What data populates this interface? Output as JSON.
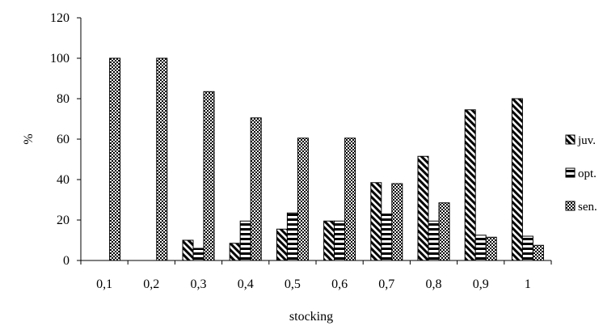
{
  "chart_data": {
    "type": "bar",
    "xlabel": "stocking",
    "ylabel": "%",
    "ylim": [
      0,
      120
    ],
    "yticks": [
      "0",
      "20",
      "40",
      "60",
      "80",
      "100",
      "120"
    ],
    "categories": [
      "0,1",
      "0,2",
      "0,3",
      "0,4",
      "0,5",
      "0,6",
      "0,7",
      "0,8",
      "0,9",
      "1"
    ],
    "grid": false,
    "legend_position": "right",
    "series": [
      {
        "name": "juv.",
        "pattern": "diagonal-stripes",
        "values": [
          0,
          0,
          10,
          8.5,
          15.5,
          19.5,
          38.5,
          51.5,
          74.5,
          80
        ]
      },
      {
        "name": "opt.",
        "pattern": "horizontal-stripes",
        "values": [
          0,
          0,
          6,
          19.5,
          23.5,
          19.5,
          23,
          19.5,
          12.5,
          12
        ]
      },
      {
        "name": "sen.",
        "pattern": "checkerboard",
        "values": [
          100,
          100,
          83.5,
          70.5,
          60.5,
          60.5,
          38,
          28.5,
          11.5,
          7.5
        ]
      }
    ]
  }
}
